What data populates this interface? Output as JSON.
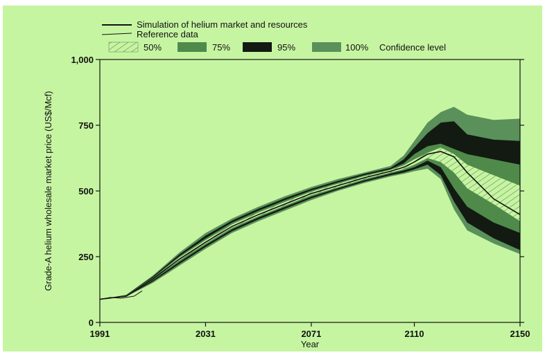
{
  "chart_data": {
    "type": "area",
    "title": "",
    "xlabel": "Year",
    "ylabel": "Grade-A helium wholesale market price (US$/Mcf)",
    "xlim": [
      1991,
      2150
    ],
    "ylim": [
      0,
      1000
    ],
    "x_ticks": [
      "1991",
      "2031",
      "2071",
      "2110",
      "2150"
    ],
    "y_ticks": [
      "0",
      "250",
      "500",
      "750",
      "1,000"
    ],
    "grid": false,
    "legend": {
      "placement": "top",
      "lines": [
        {
          "label": "Simulation of helium market and resources",
          "color": "#111111"
        },
        {
          "label": "Reference data",
          "color": "#111111"
        }
      ],
      "bands": [
        {
          "label": "50%",
          "fill": "hatch"
        },
        {
          "label": "75%",
          "fill": "#4f8a4a"
        },
        {
          "label": "95%",
          "fill": "#121a12"
        },
        {
          "label": "100%",
          "fill": "#5a905a"
        }
      ],
      "trailing_label": "Confidence level"
    },
    "x": [
      1991,
      2001,
      2011,
      2021,
      2031,
      2041,
      2051,
      2061,
      2071,
      2081,
      2091,
      2101,
      2106,
      2110,
      2115,
      2120,
      2125,
      2130,
      2140,
      2150
    ],
    "series": [
      {
        "name": "Simulation of helium market and resources",
        "role": "median",
        "values": [
          88,
          100,
          165,
          240,
          305,
          365,
          410,
          450,
          490,
          520,
          550,
          575,
          590,
          610,
          640,
          650,
          630,
          570,
          470,
          410
        ]
      },
      {
        "name": "Reference data",
        "role": "reference",
        "x": [
          1991,
          1995,
          1999,
          2001,
          2004,
          2007
        ],
        "values": [
          88,
          95,
          92,
          95,
          100,
          120
        ]
      }
    ],
    "bands": [
      {
        "level": "100%",
        "upper": [
          88,
          105,
          178,
          265,
          340,
          395,
          440,
          480,
          515,
          545,
          570,
          595,
          635,
          690,
          760,
          800,
          820,
          790,
          770,
          775
        ],
        "lower": [
          88,
          98,
          150,
          215,
          280,
          340,
          385,
          425,
          465,
          500,
          530,
          555,
          565,
          575,
          585,
          545,
          430,
          350,
          300,
          260
        ]
      },
      {
        "level": "95%",
        "upper": [
          88,
          104,
          174,
          258,
          330,
          387,
          432,
          472,
          508,
          538,
          565,
          588,
          620,
          665,
          720,
          760,
          765,
          715,
          695,
          690
        ],
        "lower": [
          88,
          99,
          155,
          222,
          287,
          347,
          392,
          432,
          472,
          505,
          535,
          560,
          570,
          582,
          600,
          560,
          460,
          380,
          320,
          275
        ]
      },
      {
        "level": "75%",
        "upper": [
          88,
          103,
          170,
          251,
          320,
          380,
          425,
          465,
          502,
          532,
          560,
          583,
          605,
          640,
          670,
          680,
          660,
          640,
          620,
          600
        ],
        "lower": [
          88,
          100,
          160,
          229,
          294,
          354,
          399,
          439,
          478,
          510,
          540,
          566,
          578,
          590,
          615,
          590,
          510,
          440,
          380,
          340
        ]
      },
      {
        "level": "50%",
        "upper": [
          88,
          102,
          167,
          246,
          313,
          373,
          418,
          458,
          497,
          527,
          556,
          580,
          597,
          620,
          645,
          665,
          640,
          600,
          560,
          520
        ],
        "lower": [
          88,
          100,
          163,
          235,
          300,
          360,
          404,
          444,
          484,
          514,
          545,
          570,
          583,
          600,
          625,
          610,
          570,
          510,
          450,
          385
        ]
      }
    ]
  }
}
